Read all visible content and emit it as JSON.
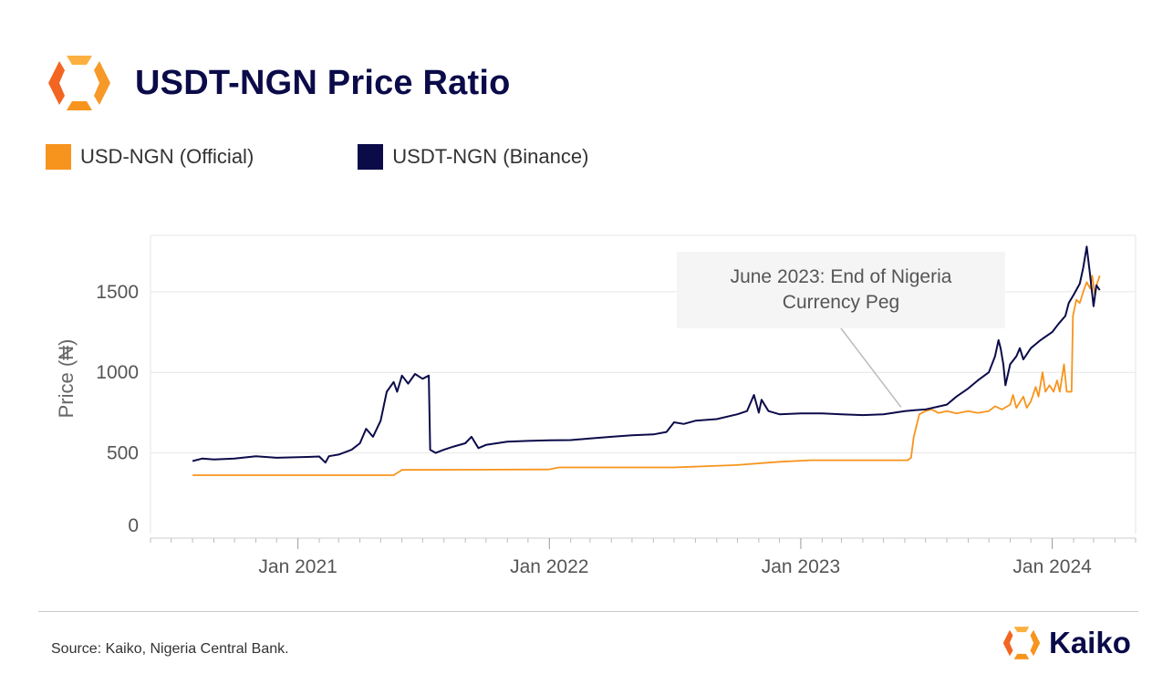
{
  "header": {
    "title": "USDT-NGN Price Ratio"
  },
  "colors": {
    "orange": "#f7941d",
    "navy": "#0b0b4a",
    "orange_light": "#fbb040"
  },
  "legend": [
    {
      "label": "USD-NGN (Official)",
      "color": "#f7941d"
    },
    {
      "label": "USDT-NGN (Binance)",
      "color": "#0b0b4a"
    }
  ],
  "footer": {
    "source": "Source: Kaiko, Nigeria Central Bank.",
    "brand": "Kaiko"
  },
  "chart_data": {
    "type": "line",
    "title": "USDT-NGN Price Ratio",
    "ylabel": "Price  (₦)",
    "xlabel": "",
    "ylim": [
      0,
      1850
    ],
    "xlim": [
      "2020-06-01",
      "2024-05-01"
    ],
    "yticks": [
      0,
      500,
      1000,
      1500
    ],
    "xticks": [
      {
        "date": "2021-01-01",
        "label": "Jan 2021"
      },
      {
        "date": "2022-01-01",
        "label": "Jan 2022"
      },
      {
        "date": "2023-01-01",
        "label": "Jan 2023"
      },
      {
        "date": "2024-01-01",
        "label": "Jan 2024"
      }
    ],
    "grid": "horizontal",
    "legend_position": "top-left",
    "annotation": {
      "text": "June 2023: End of Nigeria Currency Peg",
      "date": "2023-06-14",
      "value": 750
    },
    "series": [
      {
        "name": "USD-NGN (Official)",
        "color": "#f7941d",
        "points": [
          [
            "2020-08-01",
            362
          ],
          [
            "2021-05-20",
            362
          ],
          [
            "2021-06-01",
            395
          ],
          [
            "2021-12-31",
            398
          ],
          [
            "2022-01-15",
            410
          ],
          [
            "2022-06-30",
            410
          ],
          [
            "2022-09-30",
            425
          ],
          [
            "2022-12-01",
            445
          ],
          [
            "2023-01-15",
            455
          ],
          [
            "2023-06-05",
            455
          ],
          [
            "2023-06-10",
            470
          ],
          [
            "2023-06-14",
            600
          ],
          [
            "2023-06-18",
            670
          ],
          [
            "2023-06-22",
            740
          ],
          [
            "2023-07-01",
            760
          ],
          [
            "2023-07-10",
            770
          ],
          [
            "2023-07-20",
            748
          ],
          [
            "2023-08-01",
            760
          ],
          [
            "2023-08-15",
            745
          ],
          [
            "2023-09-01",
            760
          ],
          [
            "2023-09-15",
            748
          ],
          [
            "2023-10-01",
            760
          ],
          [
            "2023-10-10",
            790
          ],
          [
            "2023-10-20",
            770
          ],
          [
            "2023-11-01",
            800
          ],
          [
            "2023-11-05",
            860
          ],
          [
            "2023-11-10",
            780
          ],
          [
            "2023-11-20",
            850
          ],
          [
            "2023-11-25",
            780
          ],
          [
            "2023-12-01",
            820
          ],
          [
            "2023-12-08",
            910
          ],
          [
            "2023-12-12",
            850
          ],
          [
            "2023-12-18",
            1000
          ],
          [
            "2023-12-22",
            880
          ],
          [
            "2023-12-28",
            920
          ],
          [
            "2024-01-03",
            880
          ],
          [
            "2024-01-08",
            950
          ],
          [
            "2024-01-12",
            880
          ],
          [
            "2024-01-18",
            1050
          ],
          [
            "2024-01-22",
            880
          ],
          [
            "2024-01-29",
            880
          ],
          [
            "2024-01-31",
            1350
          ],
          [
            "2024-02-05",
            1450
          ],
          [
            "2024-02-10",
            1430
          ],
          [
            "2024-02-15",
            1500
          ],
          [
            "2024-02-20",
            1560
          ],
          [
            "2024-02-25",
            1520
          ],
          [
            "2024-02-28",
            1600
          ],
          [
            "2024-03-03",
            1480
          ],
          [
            "2024-03-06",
            1550
          ],
          [
            "2024-03-10",
            1600
          ]
        ]
      },
      {
        "name": "USDT-NGN (Binance)",
        "color": "#0b0b4a",
        "points": [
          [
            "2020-08-01",
            450
          ],
          [
            "2020-08-15",
            465
          ],
          [
            "2020-09-01",
            460
          ],
          [
            "2020-10-01",
            465
          ],
          [
            "2020-11-01",
            480
          ],
          [
            "2020-11-15",
            475
          ],
          [
            "2020-12-01",
            470
          ],
          [
            "2021-01-15",
            475
          ],
          [
            "2021-02-01",
            478
          ],
          [
            "2021-02-10",
            440
          ],
          [
            "2021-02-15",
            480
          ],
          [
            "2021-03-01",
            490
          ],
          [
            "2021-03-20",
            520
          ],
          [
            "2021-04-01",
            560
          ],
          [
            "2021-04-10",
            650
          ],
          [
            "2021-04-20",
            600
          ],
          [
            "2021-05-01",
            700
          ],
          [
            "2021-05-10",
            880
          ],
          [
            "2021-05-20",
            940
          ],
          [
            "2021-05-25",
            880
          ],
          [
            "2021-06-01",
            980
          ],
          [
            "2021-06-10",
            930
          ],
          [
            "2021-06-20",
            990
          ],
          [
            "2021-07-01",
            960
          ],
          [
            "2021-07-10",
            980
          ],
          [
            "2021-07-12",
            520
          ],
          [
            "2021-07-20",
            500
          ],
          [
            "2021-08-01",
            520
          ],
          [
            "2021-08-15",
            540
          ],
          [
            "2021-09-01",
            560
          ],
          [
            "2021-09-10",
            600
          ],
          [
            "2021-09-20",
            530
          ],
          [
            "2021-10-01",
            550
          ],
          [
            "2021-11-01",
            570
          ],
          [
            "2021-12-01",
            575
          ],
          [
            "2022-01-01",
            578
          ],
          [
            "2022-02-01",
            580
          ],
          [
            "2022-03-01",
            590
          ],
          [
            "2022-04-01",
            600
          ],
          [
            "2022-05-01",
            610
          ],
          [
            "2022-06-01",
            615
          ],
          [
            "2022-06-20",
            630
          ],
          [
            "2022-07-01",
            690
          ],
          [
            "2022-07-15",
            680
          ],
          [
            "2022-08-01",
            700
          ],
          [
            "2022-09-01",
            710
          ],
          [
            "2022-10-01",
            740
          ],
          [
            "2022-10-15",
            760
          ],
          [
            "2022-10-25",
            860
          ],
          [
            "2022-11-01",
            750
          ],
          [
            "2022-11-05",
            830
          ],
          [
            "2022-11-15",
            760
          ],
          [
            "2022-12-01",
            740
          ],
          [
            "2023-01-01",
            745
          ],
          [
            "2023-02-01",
            745
          ],
          [
            "2023-03-01",
            740
          ],
          [
            "2023-04-01",
            735
          ],
          [
            "2023-05-01",
            740
          ],
          [
            "2023-06-01",
            760
          ],
          [
            "2023-06-15",
            765
          ],
          [
            "2023-07-01",
            770
          ],
          [
            "2023-08-01",
            800
          ],
          [
            "2023-08-15",
            850
          ],
          [
            "2023-09-01",
            900
          ],
          [
            "2023-09-15",
            950
          ],
          [
            "2023-10-01",
            1000
          ],
          [
            "2023-10-10",
            1100
          ],
          [
            "2023-10-15",
            1200
          ],
          [
            "2023-10-18",
            1150
          ],
          [
            "2023-10-22",
            1050
          ],
          [
            "2023-10-25",
            920
          ],
          [
            "2023-11-01",
            1050
          ],
          [
            "2023-11-10",
            1100
          ],
          [
            "2023-11-15",
            1150
          ],
          [
            "2023-11-20",
            1080
          ],
          [
            "2023-12-01",
            1150
          ],
          [
            "2023-12-15",
            1200
          ],
          [
            "2024-01-01",
            1250
          ],
          [
            "2024-01-10",
            1300
          ],
          [
            "2024-01-20",
            1350
          ],
          [
            "2024-01-25",
            1430
          ],
          [
            "2024-02-01",
            1480
          ],
          [
            "2024-02-10",
            1550
          ],
          [
            "2024-02-15",
            1650
          ],
          [
            "2024-02-20",
            1780
          ],
          [
            "2024-02-25",
            1600
          ],
          [
            "2024-03-01",
            1410
          ],
          [
            "2024-03-05",
            1540
          ],
          [
            "2024-03-10",
            1510
          ]
        ]
      }
    ]
  }
}
